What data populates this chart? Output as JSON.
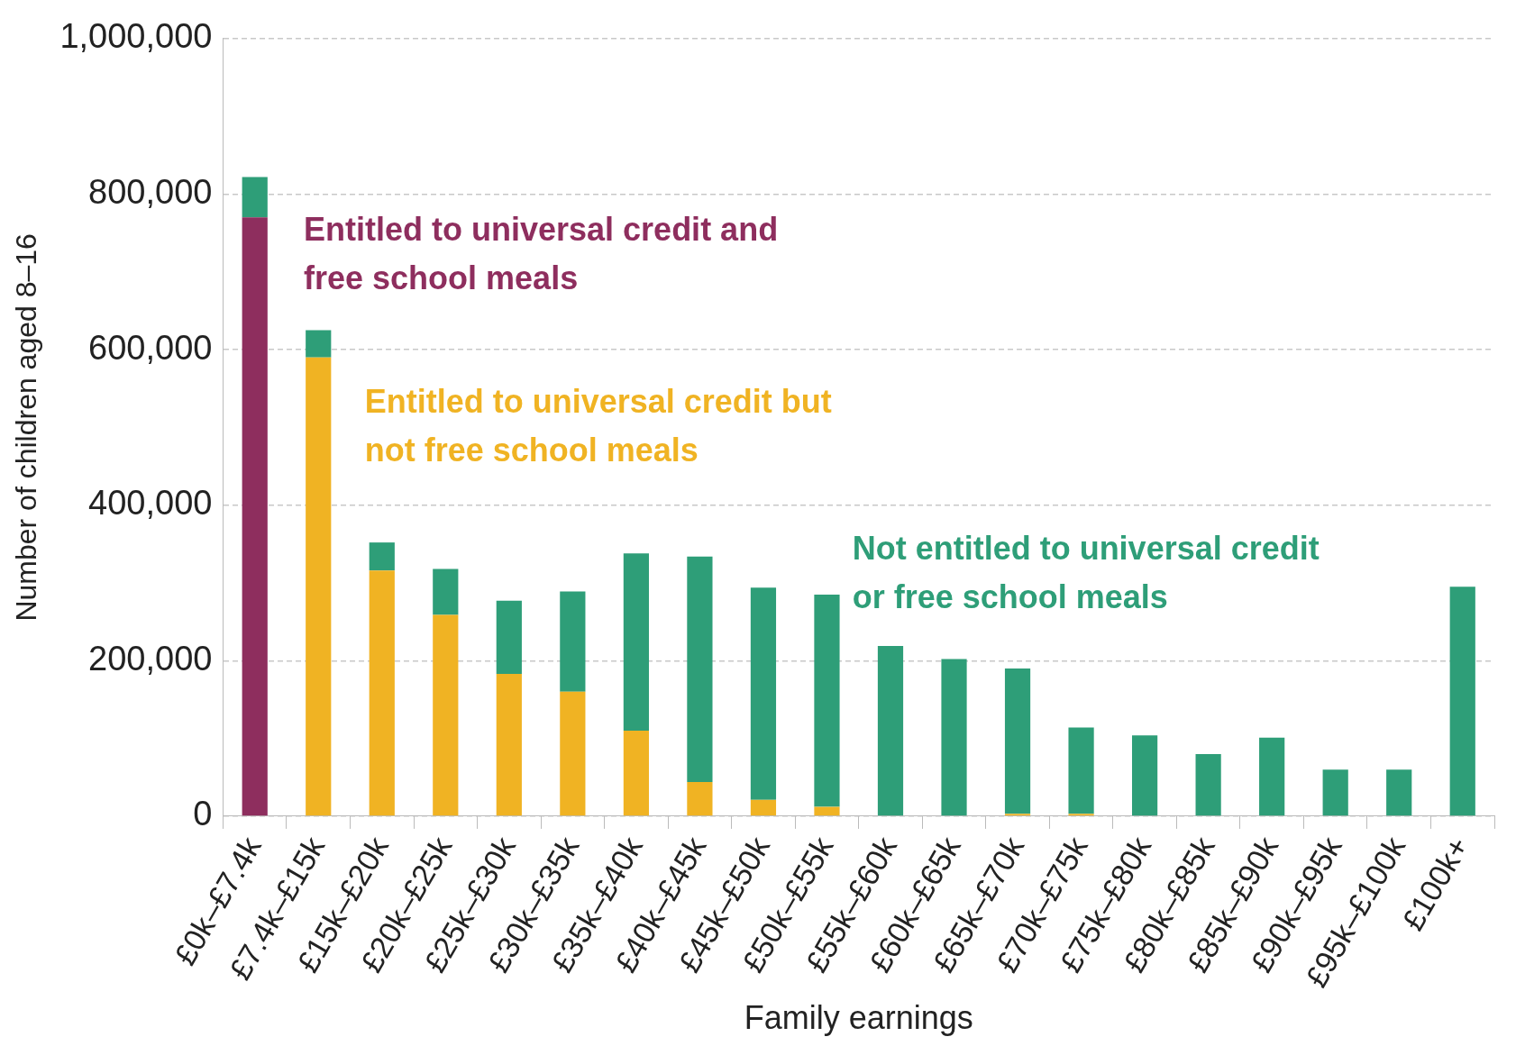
{
  "chart_data": {
    "type": "bar",
    "stacked": true,
    "xlabel": "Family earnings",
    "ylabel": "Number of children aged 8–16",
    "categories": [
      "£0k–£7.4k",
      "£7.4k–£15k",
      "£15k–£20k",
      "£20k–£25k",
      "£25k–£30k",
      "£30k–£35k",
      "£35k–£40k",
      "£40k–£45k",
      "£45k–£50k",
      "£50k–£55k",
      "£55k–£60k",
      "£60k–£65k",
      "£65k–£70k",
      "£70k–£75k",
      "£75k–£80k",
      "£80k–£85k",
      "£85k–£90k",
      "£90k–£95k",
      "£95k–£100k",
      "£100k+"
    ],
    "series": [
      {
        "name": "Entitled to universal credit and free school meals",
        "color": "#8e2e5e",
        "values": [
          770000,
          0,
          0,
          0,
          0,
          0,
          0,
          0,
          0,
          0,
          0,
          0,
          0,
          0,
          0,
          0,
          0,
          0,
          0,
          0
        ]
      },
      {
        "name": "Entitled to universal credit but not free school meals",
        "color": "#f0b323",
        "values": [
          0,
          590000,
          316000,
          259000,
          183000,
          160000,
          110000,
          44000,
          21000,
          12000,
          0,
          0,
          3000,
          3000,
          0,
          0,
          0,
          0,
          0,
          0
        ]
      },
      {
        "name": "Not entitled to universal credit or free school meals",
        "color": "#2e9e78",
        "values": [
          52000,
          35000,
          36000,
          59000,
          94000,
          129000,
          228000,
          290000,
          273000,
          273000,
          219000,
          202000,
          187000,
          111000,
          104000,
          80000,
          101000,
          60000,
          60000,
          295000
        ]
      }
    ],
    "ylim": [
      0,
      1000000
    ],
    "yticks": [
      0,
      {
        "value": 200000,
        "label": "200,000"
      },
      {
        "value": 400000,
        "label": "400,000"
      },
      {
        "value": 600000,
        "label": "600,000"
      },
      {
        "value": 800000,
        "label": "800,000"
      },
      {
        "value": 1000000,
        "label": "1,000,000"
      }
    ],
    "grid": "y",
    "legend": false
  }
}
